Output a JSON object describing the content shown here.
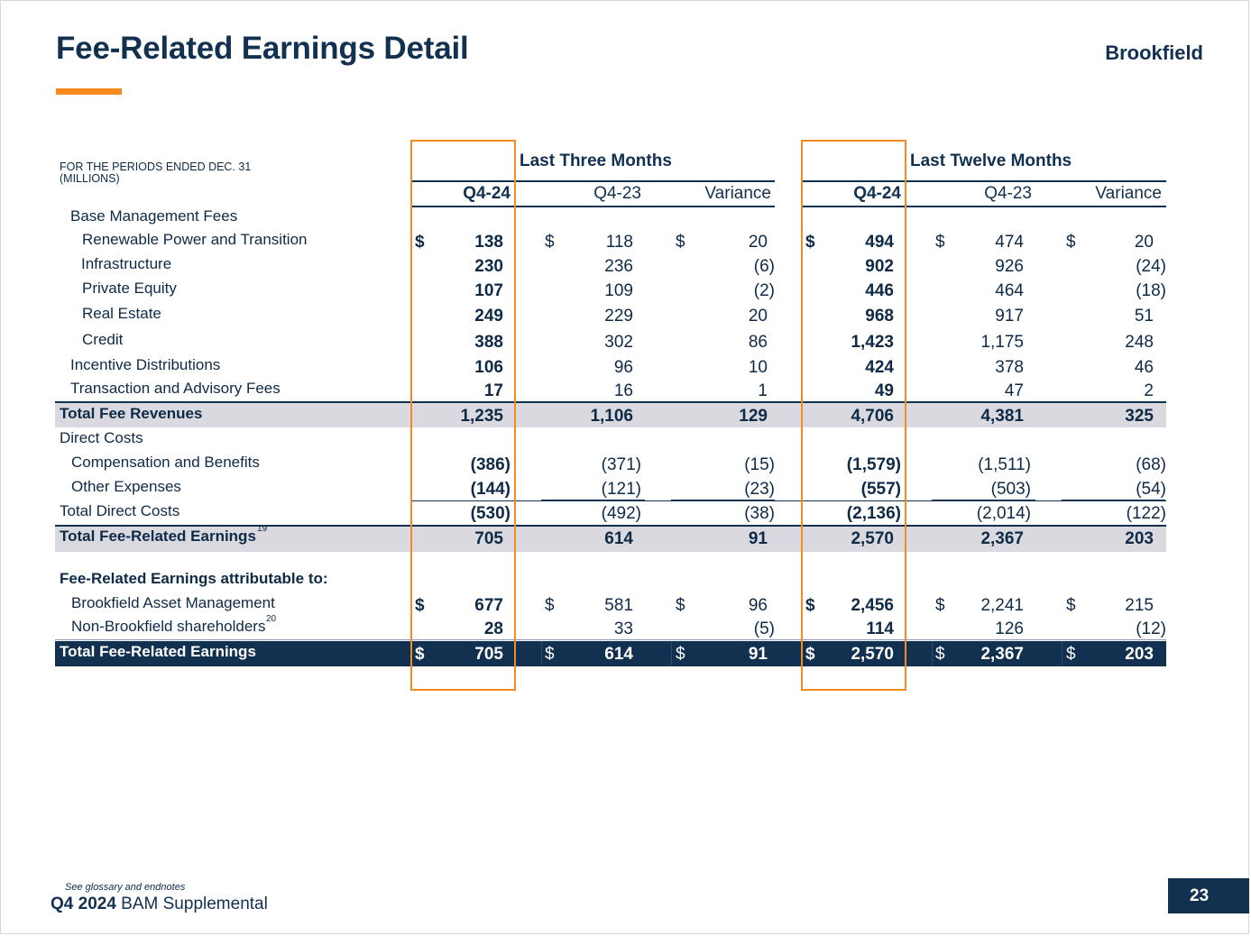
{
  "title": "Fee-Related Earnings Detail",
  "brand": "Brookfield",
  "periods_line1": "FOR THE PERIODS ENDED DEC. 31",
  "periods_line2": "(MILLIONS)",
  "groups": {
    "three_months": "Last Three Months",
    "twelve_months": "Last Twelve Months"
  },
  "columns": [
    "Q4-24",
    "Q4-23",
    "Variance",
    "Q4-24",
    "Q4-23",
    "Variance"
  ],
  "dollar": "$",
  "rows": [
    {
      "label": "Base Management Fees",
      "values": [
        "",
        "",
        "",
        "",
        "",
        ""
      ]
    },
    {
      "label": "Renewable Power and Transition",
      "values": [
        "138",
        "118",
        "20",
        "494",
        "474",
        "20"
      ]
    },
    {
      "label": "Infrastructure",
      "values": [
        "230",
        "236",
        "(6)",
        "902",
        "926",
        "(24)"
      ]
    },
    {
      "label": "Private Equity",
      "values": [
        "107",
        "109",
        "(2)",
        "446",
        "464",
        "(18)"
      ]
    },
    {
      "label": "Real Estate",
      "values": [
        "249",
        "229",
        "20",
        "968",
        "917",
        "51"
      ]
    },
    {
      "label": "Credit",
      "values": [
        "388",
        "302",
        "86",
        "1,423",
        "1,175",
        "248"
      ]
    },
    {
      "label": "Incentive Distributions",
      "values": [
        "106",
        "96",
        "10",
        "424",
        "378",
        "46"
      ]
    },
    {
      "label": "Transaction and Advisory Fees",
      "values": [
        "17",
        "16",
        "1",
        "49",
        "47",
        "2"
      ]
    },
    {
      "label": "Total Fee Revenues",
      "values": [
        "1,235",
        "1,106",
        "129",
        "4,706",
        "4,381",
        "325"
      ]
    },
    {
      "label": "Direct Costs",
      "values": [
        "",
        "",
        "",
        "",
        "",
        ""
      ]
    },
    {
      "label": "Compensation and Benefits",
      "values": [
        "(386)",
        "(371)",
        "(15)",
        "(1,579)",
        "(1,511)",
        "(68)"
      ]
    },
    {
      "label": "Other Expenses",
      "values": [
        "(144)",
        "(121)",
        "(23)",
        "(557)",
        "(503)",
        "(54)"
      ]
    },
    {
      "label": "Total Direct Costs",
      "values": [
        "(530)",
        "(492)",
        "(38)",
        "(2,136)",
        "(2,014)",
        "(122)"
      ]
    },
    {
      "label": "Total Fee-Related Earnings",
      "sup": "19",
      "values": [
        "705",
        "614",
        "91",
        "2,570",
        "2,367",
        "203"
      ]
    },
    {
      "label": "Fee-Related Earnings attributable to:",
      "values": [
        "",
        "",
        "",
        "",
        "",
        ""
      ]
    },
    {
      "label": "Brookfield Asset Management",
      "values": [
        "677",
        "581",
        "96",
        "2,456",
        "2,241",
        "215"
      ]
    },
    {
      "label": "Non-Brookfield shareholders",
      "sup": "20",
      "values": [
        "28",
        "33",
        "(5)",
        "114",
        "126",
        "(12)"
      ]
    },
    {
      "label": "Total Fee-Related Earnings",
      "values": [
        "705",
        "614",
        "91",
        "2,570",
        "2,367",
        "203"
      ]
    }
  ],
  "footer": {
    "glossary": "See glossary and endnotes",
    "report_bold": "Q4 2024",
    "report_rest": " BAM Supplemental",
    "page": "23"
  },
  "colors": {
    "navy": "#12304f",
    "orange": "#f58a1f",
    "band": "#d9d9df"
  }
}
